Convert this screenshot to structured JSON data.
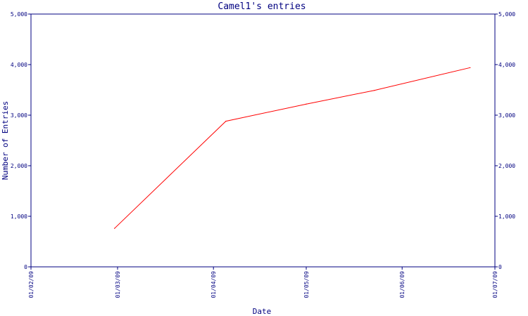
{
  "chart_data": {
    "type": "line",
    "title": "Camel1's entries",
    "xlabel": "Date",
    "ylabel": "Number of Entries",
    "x_ticks": [
      "01/02/09",
      "01/03/09",
      "01/04/09",
      "01/05/09",
      "01/06/09",
      "01/07/09"
    ],
    "y_ticks": [
      "0",
      "1,000",
      "2,000",
      "3,000",
      "4,000",
      "5,000"
    ],
    "y_ticks_right": [
      "0",
      "1,000",
      "2,000",
      "3,000",
      "4,000",
      "5,000"
    ],
    "xlim": [
      "2009-02-01",
      "2009-07-01"
    ],
    "ylim": [
      0,
      5000
    ],
    "grid": false,
    "colors": {
      "axis": "#000080",
      "line": "#ff0000"
    },
    "series": [
      {
        "x": [
          "2009-02-28",
          "2009-04-05",
          "2009-05-01",
          "2009-05-23",
          "2009-06-23"
        ],
        "values": [
          760,
          2880,
          3220,
          3490,
          3940
        ]
      }
    ]
  }
}
